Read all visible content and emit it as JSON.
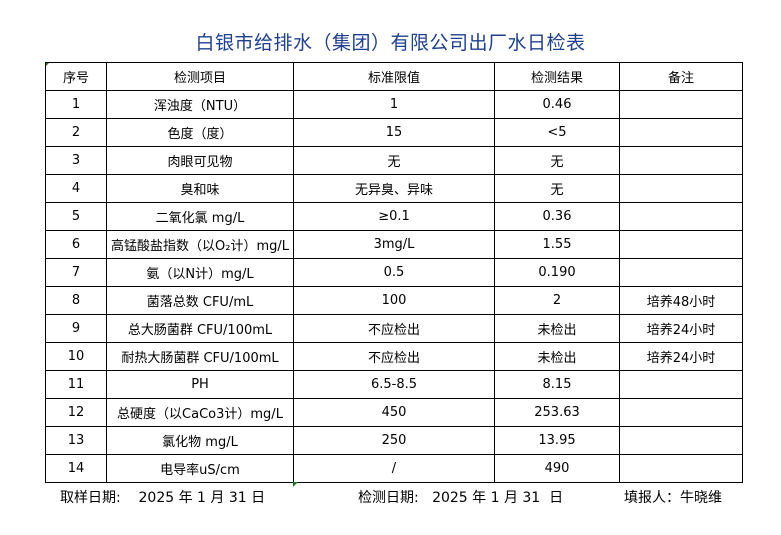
{
  "title": "白银市给排水（集团）有限公司出厂水日检表",
  "headers": [
    "序号",
    "检测项目",
    "标准限值",
    "检测结果",
    "备注"
  ],
  "rows": [
    [
      "1",
      "浑浊度（NTU）",
      "1",
      "0.46",
      ""
    ],
    [
      "2",
      "色度（度）",
      "15",
      "<5",
      ""
    ],
    [
      "3",
      "肉眼可见物",
      "无",
      "无",
      ""
    ],
    [
      "4",
      "臭和味",
      "无异臭、异味",
      "无",
      ""
    ],
    [
      "5",
      "二氧化氯 mg/L",
      "≥0.1",
      "0.36",
      ""
    ],
    [
      "6",
      "高锰酸盐指数（以O₂计）mg/L",
      "3mg/L",
      "1.55",
      ""
    ],
    [
      "7",
      "氨（以N计）mg/L",
      "0.5",
      "0.190",
      ""
    ],
    [
      "8",
      "菌落总数 CFU/mL",
      "100",
      "2",
      "培养48小时"
    ],
    [
      "9",
      "总大肠菌群 CFU/100mL",
      "不应检出",
      "未检出",
      "培养24小时"
    ],
    [
      "10",
      "耐热大肠菌群 CFU/100mL",
      "不应检出",
      "未检出",
      "培养24小时"
    ],
    [
      "11",
      "PH",
      "6.5-8.5",
      "8.15",
      ""
    ],
    [
      "12",
      "总硬度（以CaCo3计）mg/L",
      "450",
      "253.63",
      ""
    ],
    [
      "13",
      "氯化物 mg/L",
      "250",
      "13.95",
      ""
    ],
    [
      "14",
      "电导率uS/cm",
      "/",
      "490",
      ""
    ]
  ],
  "footer": {
    "sampling_date": "取样日期:    2025 年 1 月 31 日",
    "test_date": "检测日期:   2025 年 1 月 31  日",
    "reporter": "填报人：牛晓维"
  },
  "colors": {
    "title": "#1f3f8f",
    "cell_marker": "#1a7a1a"
  }
}
